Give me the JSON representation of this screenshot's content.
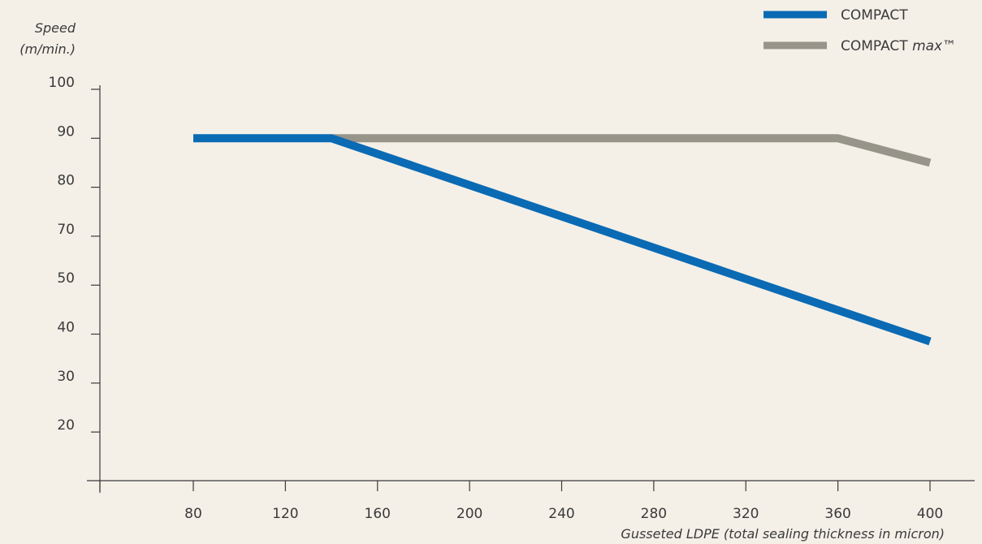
{
  "chart_data": {
    "type": "line",
    "ylabel_line1": "Speed",
    "ylabel_line2": "(m/min.)",
    "xlabel": "Gusseted LDPE (total sealing thickness in micron)",
    "x_ticks": [
      "80",
      "120",
      "160",
      "200",
      "240",
      "280",
      "320",
      "360",
      "400"
    ],
    "y_ticks": [
      "100",
      "90",
      "80",
      "70",
      "50",
      "40",
      "30",
      "20"
    ],
    "series": [
      {
        "name": "COMPACT",
        "color": "#0a6ab4",
        "points": [
          {
            "x": 80,
            "y": 90
          },
          {
            "x": 140,
            "y": 90
          },
          {
            "x": 400,
            "y": 38.5
          }
        ]
      },
      {
        "name": "COMPACT",
        "name_suffix": "max™",
        "color": "#97948a",
        "points": [
          {
            "x": 140,
            "y": 90
          },
          {
            "x": 360,
            "y": 90
          },
          {
            "x": 400,
            "y": 85
          }
        ]
      }
    ],
    "legend_position": "top-right",
    "grid": false
  }
}
